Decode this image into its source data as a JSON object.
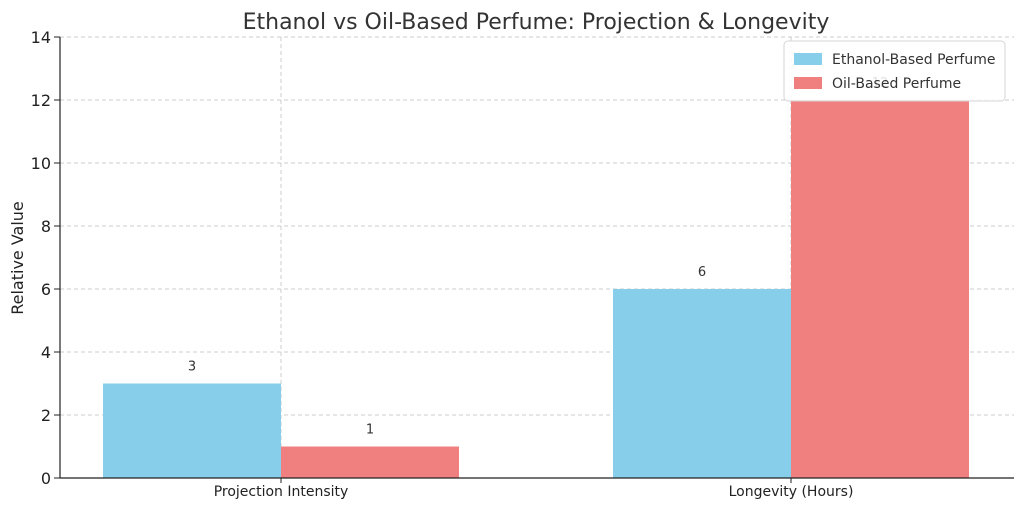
{
  "chart_data": {
    "type": "bar",
    "title": "Ethanol vs Oil-Based Perfume: Projection & Longevity",
    "xlabel": "",
    "ylabel": "Relative Value",
    "categories": [
      "Projection Intensity",
      "Longevity (Hours)"
    ],
    "series": [
      {
        "name": "Ethanol-Based Perfume",
        "values": [
          3,
          6
        ],
        "color": "#87CEEB"
      },
      {
        "name": "Oil-Based Perfume",
        "values": [
          1,
          12
        ],
        "color": "#F08080"
      }
    ],
    "ylim": [
      0,
      14
    ],
    "yticks": [
      0,
      2,
      4,
      6,
      8,
      10,
      12,
      14
    ],
    "grid": true,
    "legend_position": "top-right"
  }
}
